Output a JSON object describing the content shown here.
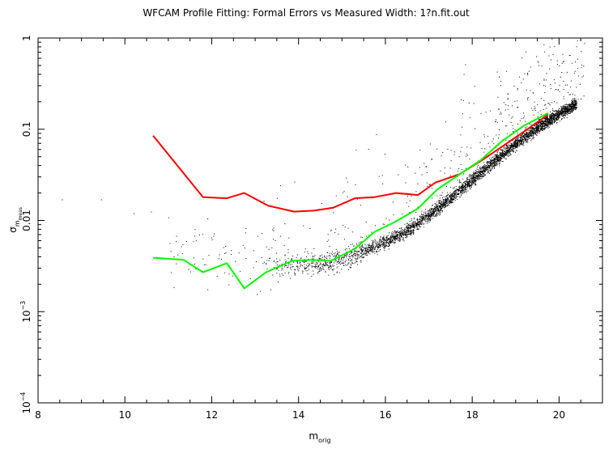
{
  "chart_data": {
    "type": "scatter",
    "title": "WFCAM Profile Fitting: Formal Errors vs Measured Width: 1?n.fit.out",
    "xlabel": {
      "main": "m",
      "sub": "orig"
    },
    "ylabel": {
      "main": "σ",
      "sub": "m",
      "subsub": "meas"
    },
    "xlim": [
      8,
      21
    ],
    "ylim": [
      0.0001,
      1
    ],
    "y_scale": "log",
    "x_ticks": [
      8,
      10,
      12,
      14,
      16,
      18,
      20
    ],
    "x_tick_labels": [
      "8",
      "10",
      "12",
      "14",
      "16",
      "18",
      "20"
    ],
    "y_ticks": [
      {
        "value": 1,
        "label": "1"
      },
      {
        "value": 0.1,
        "label": "0.1"
      },
      {
        "value": 0.01,
        "label": "0.01"
      },
      {
        "value": 0.001,
        "base": "10",
        "exp": "−3"
      },
      {
        "value": 0.0001,
        "base": "10",
        "exp": "−4"
      }
    ],
    "grid": false,
    "series": [
      {
        "kind": "line",
        "color": "#ff0000",
        "x": [
          10.65,
          11.35,
          11.8,
          12.35,
          12.75,
          13.3,
          13.9,
          14.35,
          14.8,
          15.3,
          15.75,
          16.25,
          16.75,
          17.15,
          17.7,
          18.2,
          18.7,
          19.2,
          19.75
        ],
        "y": [
          0.085,
          0.033,
          0.018,
          0.0175,
          0.02,
          0.0145,
          0.0125,
          0.0128,
          0.0138,
          0.0175,
          0.018,
          0.02,
          0.019,
          0.026,
          0.032,
          0.045,
          0.065,
          0.095,
          0.145
        ]
      },
      {
        "kind": "line",
        "color": "#00ff00",
        "x": [
          10.65,
          11.35,
          11.8,
          12.35,
          12.75,
          13.25,
          13.85,
          14.3,
          14.75,
          15.3,
          15.75,
          16.2,
          16.75,
          17.2,
          17.75,
          18.2,
          18.7,
          19.2,
          19.75
        ],
        "y": [
          0.0039,
          0.0037,
          0.0027,
          0.0034,
          0.0018,
          0.0027,
          0.0036,
          0.0037,
          0.0036,
          0.0049,
          0.0075,
          0.0095,
          0.0135,
          0.022,
          0.033,
          0.046,
          0.075,
          0.11,
          0.15
        ]
      }
    ],
    "scatter": {
      "color": "#000000",
      "description_points": "dense black points following a locus from ~0.003 at m=14 rising to ~0.15 at m=20, with sparse outliers",
      "locus_x": [
        13.0,
        14.0,
        14.6,
        15.0,
        15.5,
        16.0,
        16.5,
        17.0,
        17.5,
        18.0,
        18.5,
        19.0,
        19.5,
        20.0,
        20.4
      ],
      "locus_y": [
        0.0035,
        0.0032,
        0.0034,
        0.0038,
        0.0046,
        0.0058,
        0.0078,
        0.0115,
        0.018,
        0.028,
        0.045,
        0.07,
        0.105,
        0.15,
        0.19
      ],
      "sparse_points": [
        [
          8.55,
          0.017
        ],
        [
          9.45,
          0.017
        ],
        [
          10.2,
          0.012
        ],
        [
          10.6,
          0.0125
        ],
        [
          11.0,
          0.0108
        ],
        [
          11.6,
          0.0068
        ],
        [
          11.9,
          0.0105
        ]
      ]
    }
  }
}
